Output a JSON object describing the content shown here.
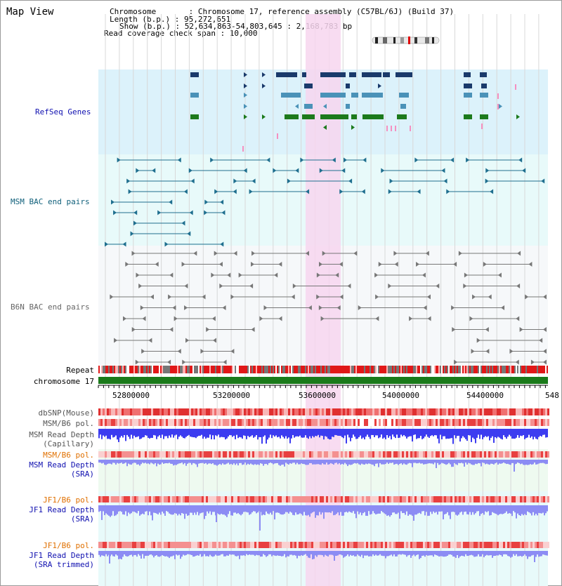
{
  "view_title": "Map View",
  "info": {
    "chromosome": "Chromosome       : Chromosome 17, reference assembly (C57BL/6J) (Build 37)",
    "length": "Length (b.p.) : 95,272,651",
    "show": "Show (b.p.) : 52,634,863-54,803,645 : 2,168,783 bp",
    "coverage": "Read coverage check span : 10,000"
  },
  "tracks": {
    "refseq": "RefSeq Genes",
    "msm_bac": "MSM BAC end pairs",
    "b6n_bac": "B6N BAC end pairs",
    "repeat": "Repeat",
    "chromosome": "chromosome 17",
    "dbsnp": "dbSNP(Mouse)",
    "msm_b6_pol": "MSM/B6 pol.",
    "msm_depth_cap_1": "MSM Read Depth",
    "msm_depth_cap_2": "(Capillary)",
    "msm_b6_pol_2": "MSM/B6 pol.",
    "msm_depth_sra_1": "MSM Read Depth",
    "msm_depth_sra_2": "(SRA)",
    "jf1_b6_pol": "JF1/B6 pol.",
    "jf1_depth_sra_1": "JF1 Read Depth",
    "jf1_depth_sra_2": "(SRA)",
    "jf1_b6_pol_2": "JF1/B6 pol.",
    "jf1_depth_trim_1": "JF1 Read Depth",
    "jf1_depth_trim_2": "(SRA trimmed)"
  },
  "axis_ticks": [
    "52800000",
    "53200000",
    "53600000",
    "54000000",
    "54400000",
    "548"
  ],
  "colors": {
    "refseq_bg": "#dcf2fb",
    "bac_bg": "#e8fafa",
    "highlight": "#f7d6ef",
    "gene_navy": "#1a3a6b",
    "gene_teal": "#4a92b8",
    "gene_green": "#1c7a1c",
    "chromosome_bar": "#1a7a1a",
    "depth_blue": "#3c3cf0",
    "depth_light": "#8c8cf4",
    "label_blue": "#1010b0",
    "label_orange": "#e07000",
    "label_teal": "#0f5f7a",
    "label_gray": "#555555"
  }
}
